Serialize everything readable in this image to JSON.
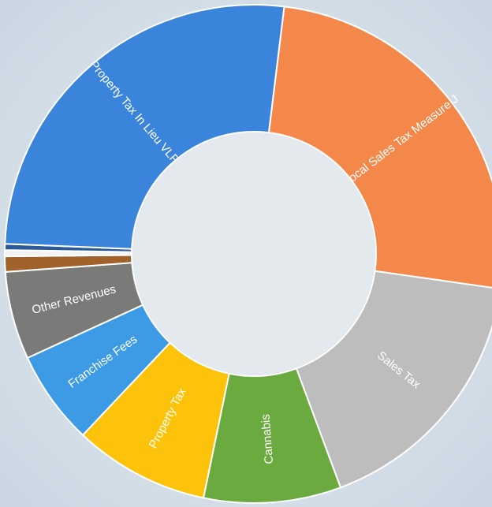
{
  "chart_data": {
    "type": "donut",
    "categories": [
      "Local Sales Tax Measure J",
      "Sales Tax",
      "Cannabis",
      "Property Tax",
      "Franchise Fees",
      "Other Revenues",
      null,
      null,
      null,
      "Property Tax In Lieu VLF"
    ],
    "values": [
      25.3,
      17.1,
      8.9,
      8.8,
      6.1,
      5.7,
      1.0,
      0.4,
      0.4,
      26.3
    ],
    "colors": [
      "#f4884a",
      "#bdbdbd",
      "#6aaa3e",
      "#fcc30a",
      "#3d9be6",
      "#7a7a78",
      "#a0612a",
      "#f2f2f2",
      "#2a5a9a",
      "#3a84dc"
    ]
  }
}
